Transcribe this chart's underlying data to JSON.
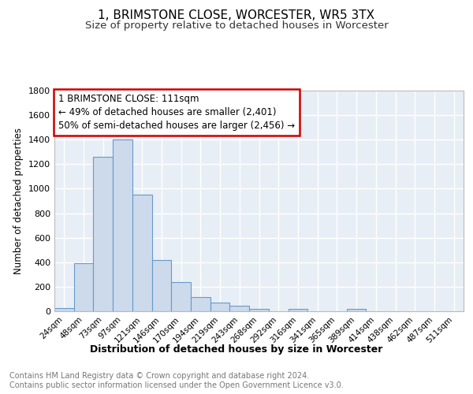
{
  "title": "1, BRIMSTONE CLOSE, WORCESTER, WR5 3TX",
  "subtitle": "Size of property relative to detached houses in Worcester",
  "xlabel": "Distribution of detached houses by size in Worcester",
  "ylabel": "Number of detached properties",
  "bar_color": "#ccdaeb",
  "bar_edge_color": "#6699cc",
  "background_color": "#ffffff",
  "plot_bg_color": "#e8eef5",
  "grid_color": "#ffffff",
  "categories": [
    "24sqm",
    "48sqm",
    "73sqm",
    "97sqm",
    "121sqm",
    "146sqm",
    "170sqm",
    "194sqm",
    "219sqm",
    "243sqm",
    "268sqm",
    "292sqm",
    "316sqm",
    "341sqm",
    "365sqm",
    "389sqm",
    "414sqm",
    "438sqm",
    "462sqm",
    "487sqm",
    "511sqm"
  ],
  "values": [
    28,
    390,
    1260,
    1400,
    950,
    415,
    235,
    115,
    70,
    48,
    20,
    0,
    20,
    0,
    0,
    20,
    0,
    0,
    0,
    0,
    0
  ],
  "ylim": [
    0,
    1800
  ],
  "yticks": [
    0,
    200,
    400,
    600,
    800,
    1000,
    1200,
    1400,
    1600,
    1800
  ],
  "annotation_text": "1 BRIMSTONE CLOSE: 111sqm\n← 49% of detached houses are smaller (2,401)\n50% of semi-detached houses are larger (2,456) →",
  "annotation_box_color": "#cc0000",
  "footer_text": "Contains HM Land Registry data © Crown copyright and database right 2024.\nContains public sector information licensed under the Open Government Licence v3.0.",
  "title_fontsize": 11,
  "subtitle_fontsize": 9.5,
  "ylabel_fontsize": 8.5,
  "xlabel_fontsize": 9,
  "footer_fontsize": 7,
  "annotation_fontsize": 8.5
}
